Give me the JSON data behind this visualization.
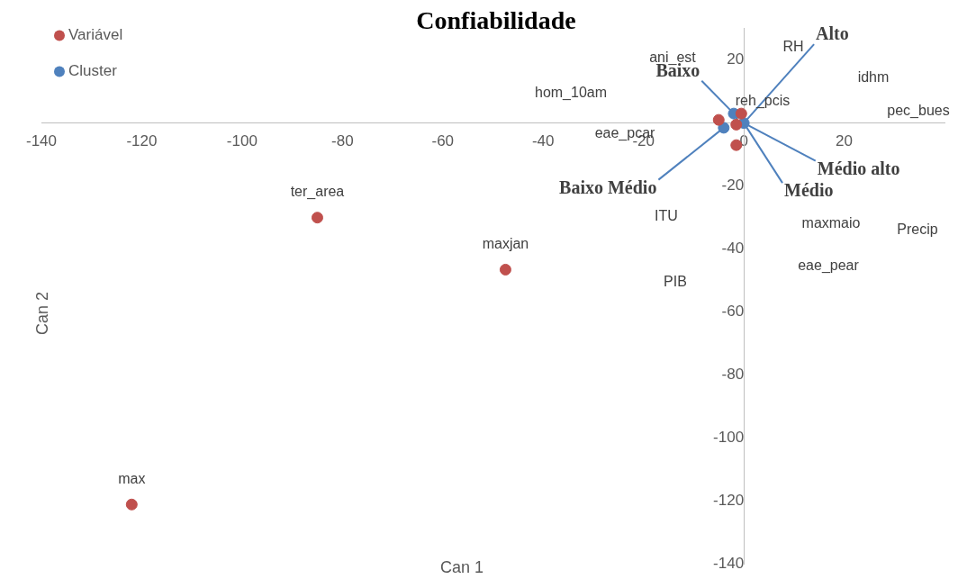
{
  "chart_data": {
    "type": "scatter",
    "title": "Confiabilidade",
    "xlabel": "Can 1",
    "ylabel": "Can 2",
    "xlim": [
      -140,
      40
    ],
    "xticks": [
      -140,
      -120,
      -100,
      -80,
      -60,
      -40,
      -20,
      0,
      20
    ],
    "ylim": [
      -140,
      30
    ],
    "yticks": [
      -140,
      -120,
      -100,
      -80,
      -60,
      -40,
      -20,
      0,
      20
    ],
    "grid": false,
    "legend": "top left",
    "marker": "circle",
    "series": [
      {
        "name": "Variável",
        "color": "#c0504d",
        "x": [
          -5,
          -0.5,
          -1.5,
          -1.5,
          -85,
          -47.5,
          -122
        ],
        "values": [
          1,
          3,
          -0.5,
          -7,
          -30,
          -46.5,
          -121
        ],
        "value_labels": [
          null,
          null,
          null,
          null,
          "ter_area",
          "maxjan",
          "max"
        ]
      },
      {
        "name": "Cluster",
        "color": "#4f81bd",
        "x": [
          0,
          -2,
          -4
        ],
        "values": [
          0,
          3,
          -1.5
        ]
      },
      {
        "name": "Alto",
        "type": "line",
        "color": "#4f81bd",
        "marker": "none",
        "x": [
          0,
          14
        ],
        "values": [
          0,
          25
        ]
      },
      {
        "name": "Baixo",
        "type": "line",
        "color": "#4f81bd",
        "marker": "none",
        "x": [
          -2,
          -8.4
        ],
        "values": [
          3,
          13.4
        ]
      },
      {
        "name": "Baixo Médio",
        "type": "line",
        "color": "#4f81bd",
        "marker": "none",
        "x": [
          -4,
          -17
        ],
        "values": [
          -1.5,
          -18
        ]
      },
      {
        "name": "Médio",
        "type": "line",
        "color": "#4f81bd",
        "marker": "none",
        "x": [
          0,
          7.7
        ],
        "values": [
          0,
          -19
        ]
      },
      {
        "name": "Médio alto",
        "type": "line",
        "color": "#4f81bd",
        "marker": "none",
        "x": [
          0,
          14.3
        ],
        "values": [
          0,
          -12
        ]
      }
    ],
    "annotations": [
      "ani_est",
      "RH",
      "idhm",
      "hom_10am",
      "reh_pcis",
      "pec_bues",
      "eae_pcar",
      "ITU",
      "maxmaio",
      "Precip",
      "eae_pear",
      "PIB"
    ]
  }
}
